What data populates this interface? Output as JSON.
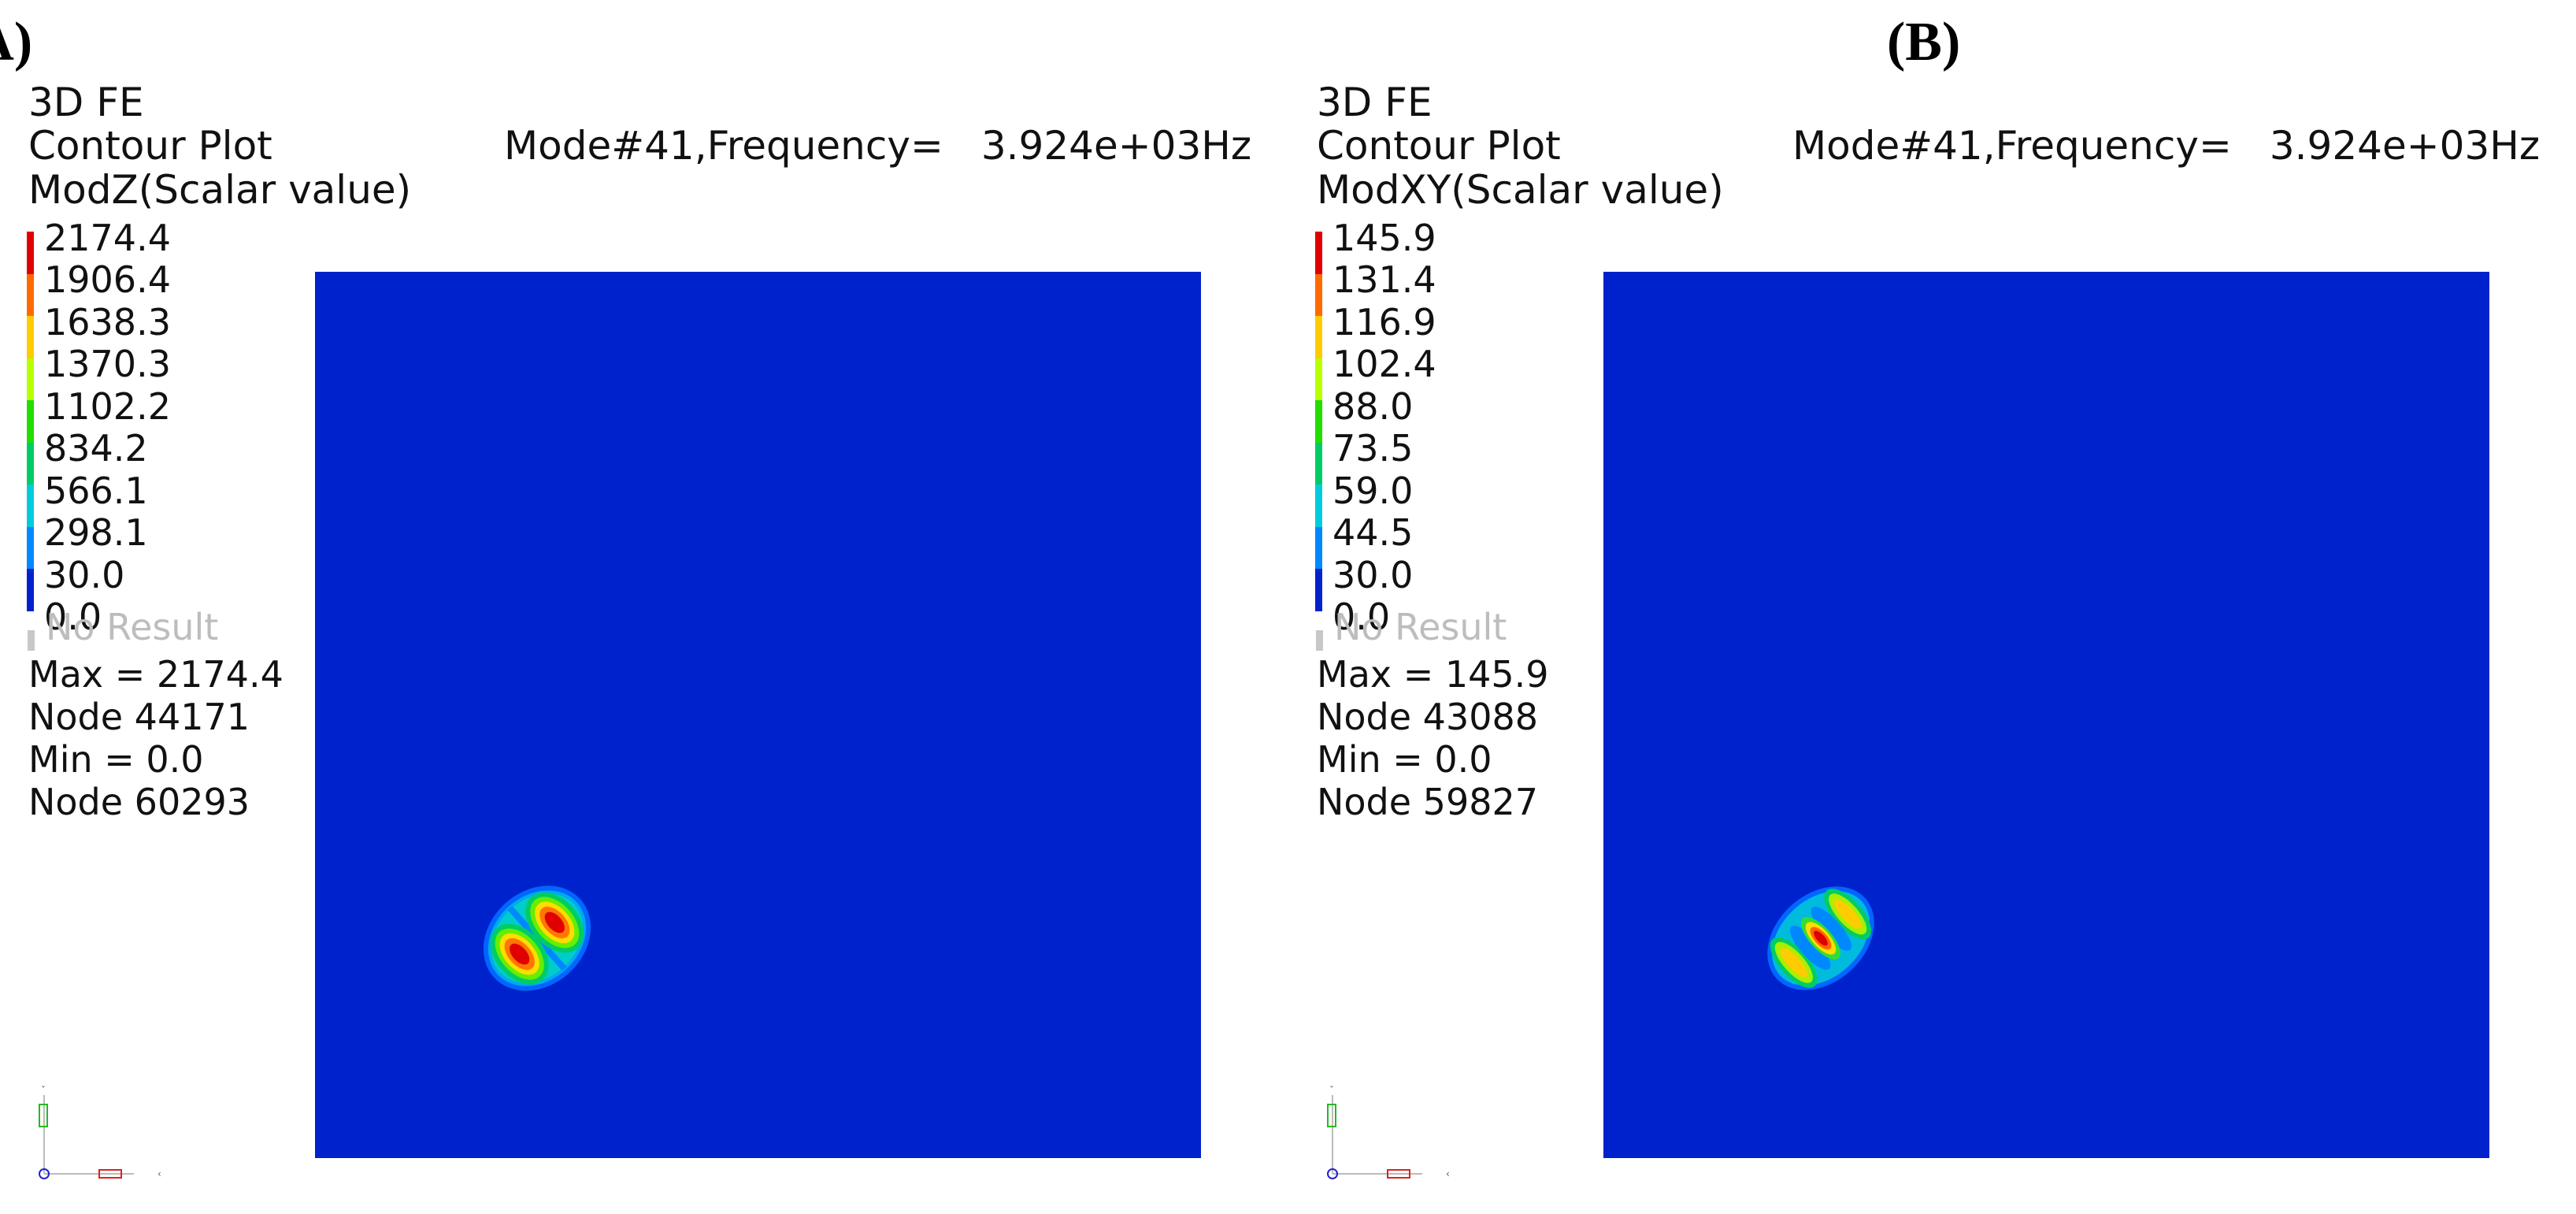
{
  "panels": [
    {
      "letter": "(A)",
      "header": {
        "line1": "3D FE",
        "line2": "Contour Plot",
        "line3": "ModZ(Scalar value)"
      },
      "mode": {
        "label": "Mode#41,Frequency=",
        "value": "3.924e+03Hz"
      },
      "legend": {
        "labels": [
          "2174.4",
          "1906.4",
          "1638.3",
          "1370.3",
          "1102.2",
          "834.2",
          "566.1",
          "298.1",
          "30.0",
          "0.0"
        ],
        "colors": [
          "#e00000",
          "#ff6a00",
          "#ffcc00",
          "#b8ff00",
          "#22dd00",
          "#00cc66",
          "#00ccdd",
          "#0088ff",
          "#0022cc"
        ],
        "no_result": "No Result"
      },
      "stats": {
        "max": "Max = 2174.4",
        "max_node": "Node 44171",
        "min": "Min = 0.0",
        "min_node": "Node 60293"
      }
    },
    {
      "letter": "(B)",
      "header": {
        "line1": "3D FE",
        "line2": "Contour Plot",
        "line3": "ModXY(Scalar value)"
      },
      "mode": {
        "label": "Mode#41,Frequency=",
        "value": "3.924e+03Hz"
      },
      "legend": {
        "labels": [
          "145.9",
          "131.4",
          "116.9",
          "102.4",
          "88.0",
          "73.5",
          "59.0",
          "44.5",
          "30.0",
          "0.0"
        ],
        "colors": [
          "#e00000",
          "#ff6a00",
          "#ffcc00",
          "#b8ff00",
          "#22dd00",
          "#00cc66",
          "#00ccdd",
          "#0088ff",
          "#0022cc"
        ],
        "no_result": "No Result"
      },
      "stats": {
        "max": "Max = 145.9",
        "max_node": "Node 43088",
        "min": "Min = 0.0",
        "min_node": "Node 59827"
      }
    }
  ],
  "plate_color": "#0022cc"
}
